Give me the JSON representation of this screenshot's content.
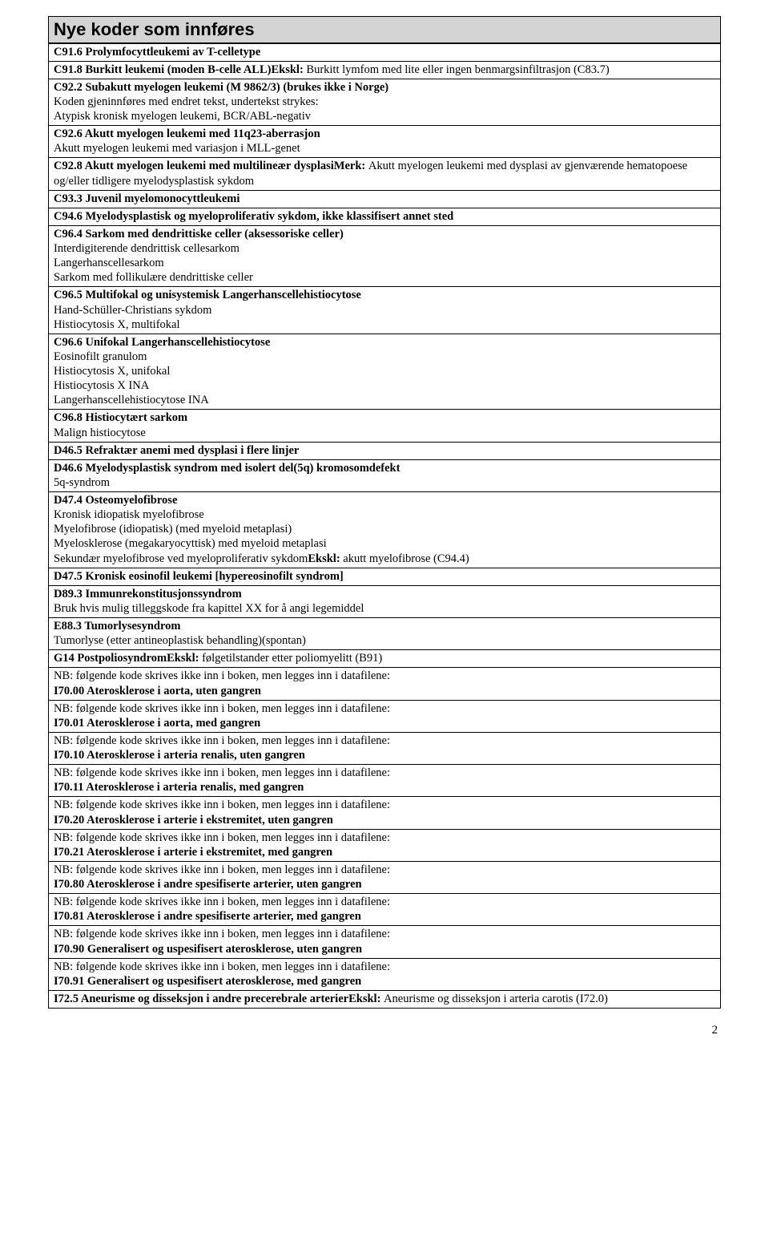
{
  "title": "Nye koder som innføres",
  "page_number": "2",
  "rows": [
    [
      {
        "t": "C91.6 Prolymfocyttleukemi av T-celletype",
        "b": true
      }
    ],
    [
      {
        "t": "C91.8 Burkitt leukemi (moden B-celle ALL)",
        "b": true
      },
      {
        "t": "Ekskl: ",
        "b": true,
        "inline": true
      },
      {
        "t": "Burkitt lymfom med lite eller ingen benmargsinfiltrasjon (C83.7)",
        "b": false,
        "inline": true
      }
    ],
    [
      {
        "t": "C92.2 Subakutt myelogen leukemi (M 9862/3) (brukes ikke i Norge)",
        "b": true
      },
      {
        "t": "Koden gjeninnføres med endret tekst, undertekst strykes:",
        "b": false
      },
      {
        "t": "Atypisk kronisk myelogen leukemi, BCR/ABL-negativ",
        "b": false
      }
    ],
    [
      {
        "t": "C92.6 Akutt myelogen leukemi med 11q23-aberrasjon",
        "b": true
      },
      {
        "t": "Akutt myelogen leukemi med variasjon i MLL-genet",
        "b": false
      }
    ],
    [
      {
        "t": "C92.8 Akutt myelogen leukemi med multilineær dysplasi",
        "b": true
      },
      {
        "t": "Merk: ",
        "b": true,
        "inline": true
      },
      {
        "t": "Akutt myelogen leukemi med dysplasi av gjenværende hematopoese og/eller tidligere myelodysplastisk sykdom",
        "b": false,
        "inline": true
      }
    ],
    [
      {
        "t": "C93.3 Juvenil myelomonocyttleukemi",
        "b": true
      }
    ],
    [
      {
        "t": "C94.6 Myelodysplastisk og myeloproliferativ sykdom, ikke klassifisert annet sted",
        "b": true
      }
    ],
    [
      {
        "t": "C96.4 Sarkom med dendrittiske celler (aksessoriske celler)",
        "b": true
      },
      {
        "t": "Interdigiterende dendrittisk cellesarkom",
        "b": false
      },
      {
        "t": "Langerhanscellesarkom",
        "b": false
      },
      {
        "t": "Sarkom med follikulære dendrittiske celler",
        "b": false
      }
    ],
    [
      {
        "t": "C96.5 Multifokal og unisystemisk Langerhanscellehistiocytose",
        "b": true
      },
      {
        "t": "Hand-Schüller-Christians sykdom",
        "b": false
      },
      {
        "t": "Histiocytosis X, multifokal",
        "b": false
      }
    ],
    [
      {
        "t": "C96.6 Unifokal Langerhanscellehistiocytose",
        "b": true
      },
      {
        "t": "Eosinofilt granulom",
        "b": false
      },
      {
        "t": "Histiocytosis X, unifokal",
        "b": false
      },
      {
        "t": "Histiocytosis X INA",
        "b": false
      },
      {
        "t": "Langerhanscellehistiocytose INA",
        "b": false
      }
    ],
    [
      {
        "t": "C96.8 Histiocytært sarkom",
        "b": true
      },
      {
        "t": "Malign histiocytose",
        "b": false
      }
    ],
    [
      {
        "t": "D46.5 Refraktær anemi med dysplasi i flere linjer",
        "b": true
      }
    ],
    [
      {
        "t": "D46.6 Myelodysplastisk syndrom med isolert del(5q) kromosomdefekt",
        "b": true
      },
      {
        "t": "5q-syndrom",
        "b": false
      }
    ],
    [
      {
        "t": "D47.4 Osteomyelofibrose",
        "b": true
      },
      {
        "t": "Kronisk idiopatisk myelofibrose",
        "b": false
      },
      {
        "t": "Myelofibrose (idiopatisk) (med myeloid metaplasi)",
        "b": false
      },
      {
        "t": "Myelosklerose (megakaryocyttisk) med myeloid metaplasi",
        "b": false
      },
      {
        "t": "Sekundær myelofibrose ved myeloproliferativ sykdom",
        "b": false
      },
      {
        "t": "Ekskl: ",
        "b": true,
        "inline": true
      },
      {
        "t": "akutt myelofibrose (C94.4)",
        "b": false,
        "inline": true
      }
    ],
    [
      {
        "t": "D47.5 Kronisk eosinofil leukemi [hypereosinofilt syndrom]",
        "b": true
      }
    ],
    [
      {
        "t": "D89.3 Immunrekonstitusjonssyndrom",
        "b": true
      },
      {
        "t": "Bruk hvis mulig tilleggskode fra kapittel XX for å angi legemiddel",
        "b": false
      }
    ],
    [
      {
        "t": "E88.3 Tumorlysesyndrom",
        "b": true
      },
      {
        "t": "Tumorlyse (etter antineoplastisk behandling)(spontan)",
        "b": false
      }
    ],
    [
      {
        "t": "G14 Postpoliosyndrom",
        "b": true
      },
      {
        "t": "Ekskl: ",
        "b": true,
        "inline": true
      },
      {
        "t": "følgetilstander etter poliomyelitt (B91)",
        "b": false,
        "inline": true
      }
    ],
    [
      {
        "t": "NB: følgende kode skrives ikke inn i boken, men legges inn i datafilene:",
        "b": false
      },
      {
        "t": "I70.00 Aterosklerose i aorta, uten gangren",
        "b": true
      }
    ],
    [
      {
        "t": "NB: følgende kode skrives ikke inn i boken, men legges inn i datafilene:",
        "b": false
      },
      {
        "t": "I70.01 Aterosklerose i aorta, med gangren",
        "b": true
      }
    ],
    [
      {
        "t": "NB: følgende kode skrives ikke inn i boken, men legges inn i datafilene:",
        "b": false
      },
      {
        "t": "I70.10 Aterosklerose i arteria renalis, uten gangren",
        "b": true
      }
    ],
    [
      {
        "t": "NB: følgende kode skrives ikke inn i boken, men legges inn i datafilene:",
        "b": false
      },
      {
        "t": "I70.11 Aterosklerose i arteria renalis, med gangren",
        "b": true
      }
    ],
    [
      {
        "t": "NB: følgende kode skrives ikke inn i boken, men legges inn i datafilene:",
        "b": false
      },
      {
        "t": "I70.20 Aterosklerose i arterie i ekstremitet, uten gangren",
        "b": true
      }
    ],
    [
      {
        "t": "NB: følgende kode skrives ikke inn i boken, men legges inn i datafilene:",
        "b": false
      },
      {
        "t": "I70.21 Aterosklerose i arterie i ekstremitet, med gangren",
        "b": true
      }
    ],
    [
      {
        "t": "NB: følgende kode skrives ikke inn i boken, men legges inn i datafilene:",
        "b": false
      },
      {
        "t": "I70.80 Aterosklerose i andre spesifiserte arterier, uten gangren",
        "b": true
      }
    ],
    [
      {
        "t": "NB: følgende kode skrives ikke inn i boken, men legges inn i datafilene:",
        "b": false
      },
      {
        "t": "I70.81 Aterosklerose i andre spesifiserte arterier, med gangren",
        "b": true
      }
    ],
    [
      {
        "t": "NB: følgende kode skrives ikke inn i boken, men legges inn i datafilene:",
        "b": false
      },
      {
        "t": "I70.90 Generalisert og uspesifisert aterosklerose, uten gangren",
        "b": true
      }
    ],
    [
      {
        "t": "NB: følgende kode skrives ikke inn i boken, men legges inn i datafilene:",
        "b": false
      },
      {
        "t": "I70.91 Generalisert og uspesifisert aterosklerose, med gangren",
        "b": true
      }
    ],
    [
      {
        "t": "I72.5 Aneurisme og disseksjon i andre precerebrale arterier",
        "b": true
      },
      {
        "t": "Ekskl: ",
        "b": true,
        "inline": true
      },
      {
        "t": "Aneurisme og disseksjon i arteria carotis (I72.0)",
        "b": false,
        "inline": true
      }
    ]
  ]
}
